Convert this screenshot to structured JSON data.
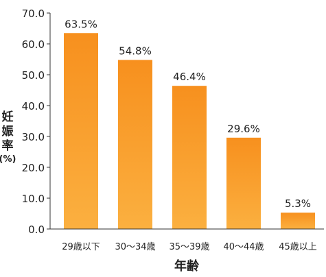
{
  "chart_data": {
    "type": "bar",
    "categories": [
      "29歳以下",
      "30～34歳",
      "35～39歳",
      "40～44歳",
      "45歳以上"
    ],
    "values": [
      63.5,
      54.8,
      46.4,
      29.6,
      5.3
    ],
    "value_labels": [
      "63.5%",
      "54.8%",
      "46.4%",
      "29.6%",
      "5.3%"
    ],
    "title": "",
    "xlabel": "年齢",
    "ylabel": [
      "妊",
      "娠",
      "率",
      "(%)"
    ],
    "ylim": [
      0,
      70
    ],
    "yticks": [
      "0.0",
      "10.0",
      "20.0",
      "30.0",
      "40.0",
      "50.0",
      "60.0",
      "70.0"
    ],
    "grid": false,
    "legend": "none",
    "colors": {
      "bar_top": "#f7901e",
      "bar_bottom": "#fbb040",
      "axis": "#333333"
    }
  }
}
